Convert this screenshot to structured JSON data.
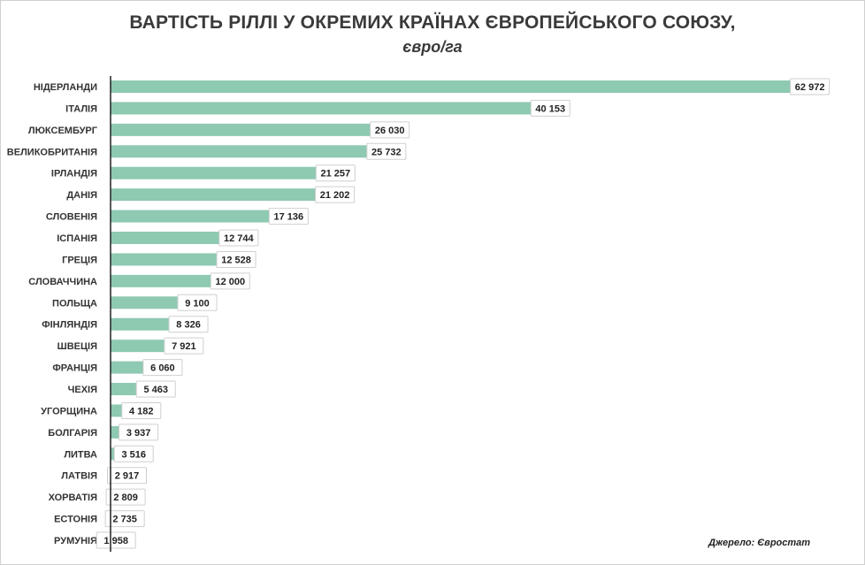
{
  "chart_data": {
    "type": "bar",
    "orientation": "horizontal",
    "title": "ВАРТІСТЬ РІЛЛІ У ОКРЕМИХ КРАЇНАХ ЄВРОПЕЙСЬКОГО СОЮЗУ,",
    "subtitle": "євро/га",
    "categories": [
      "НІДЕРЛАНДИ",
      "ІТАЛІЯ",
      "ЛЮКСЕМБУРГ",
      "ВЕЛИКОБРИТАНІЯ",
      "ІРЛАНДІЯ",
      "ДАНІЯ",
      "СЛОВЕНІЯ",
      "ІСПАНІЯ",
      "ГРЕЦІЯ",
      "СЛОВАЧЧИНА",
      "ПОЛЬЩА",
      "ФІНЛЯНДІЯ",
      "ШВЕЦІЯ",
      "ФРАНЦІЯ",
      "ЧЕХІЯ",
      "УГОРЩИНА",
      "БОЛГАРІЯ",
      "ЛИТВА",
      "ЛАТВІЯ",
      "ХОРВАТІЯ",
      "ЕСТОНІЯ",
      "РУМУНІЯ"
    ],
    "values": [
      62972,
      40153,
      26030,
      25732,
      21257,
      21202,
      17136,
      12744,
      12528,
      12000,
      9100,
      8326,
      7921,
      6060,
      5463,
      4182,
      3937,
      3516,
      2917,
      2809,
      2735,
      1958
    ],
    "value_labels": [
      "62 972",
      "40 153",
      "26 030",
      "25 732",
      "21 257",
      "21 202",
      "17 136",
      "12 744",
      "12 528",
      "12 000",
      "9 100",
      "8 326",
      "7 921",
      "6 060",
      "5 463",
      "4 182",
      "3 937",
      "3 516",
      "2 917",
      "2 809",
      "2 735",
      "1 958"
    ],
    "xlim": [
      0,
      63000
    ],
    "grid": false,
    "bar_color": "#8ec9b1"
  },
  "source": "Джерело: Євростат"
}
